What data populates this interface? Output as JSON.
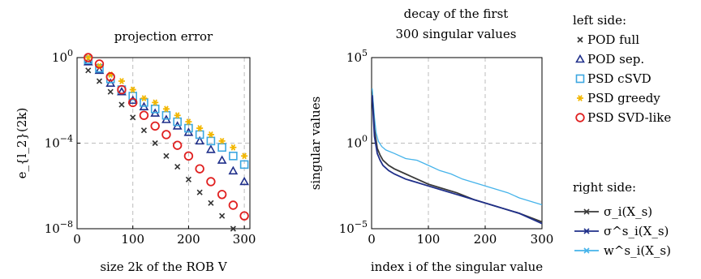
{
  "chart_data": [
    {
      "type": "scatter",
      "title": "projection error",
      "ylabel": "e_{l_2}(2k)",
      "xlabel": "size 2k of the ROB V",
      "xlim": [
        0,
        310
      ],
      "ylim_log10": [
        -8,
        0
      ],
      "yscale": "log",
      "grid": true,
      "x_ticks": [
        0,
        100,
        200,
        300
      ],
      "y_ticks": [
        {
          "label": "10",
          "exp": "0",
          "log10": 0
        },
        {
          "label": "10",
          "exp": "−4",
          "log10": -4
        },
        {
          "label": "10",
          "exp": "−8",
          "log10": -8
        }
      ],
      "x": [
        20,
        40,
        60,
        80,
        100,
        120,
        140,
        160,
        180,
        200,
        220,
        240,
        260,
        280,
        300
      ],
      "series": [
        {
          "name": "POD full",
          "marker": "cross",
          "color": "#333333",
          "log10_values": [
            -0.6,
            -1.1,
            -1.6,
            -2.2,
            -2.8,
            -3.4,
            -4.0,
            -4.6,
            -5.1,
            -5.7,
            -6.3,
            -6.8,
            -7.4,
            -8.0,
            -8.6
          ]
        },
        {
          "name": "POD sep.",
          "marker": "triangle",
          "color": "#1f2f8a",
          "log10_values": [
            -0.2,
            -0.6,
            -1.2,
            -1.6,
            -2.0,
            -2.3,
            -2.6,
            -2.9,
            -3.2,
            -3.5,
            -3.9,
            -4.3,
            -4.8,
            -5.3,
            -5.8
          ]
        },
        {
          "name": "PSD cSVD",
          "marker": "square",
          "color": "#3ca7e0",
          "log10_values": [
            -0.1,
            -0.5,
            -1.0,
            -1.5,
            -1.8,
            -2.1,
            -2.4,
            -2.7,
            -3.0,
            -3.3,
            -3.6,
            -3.9,
            -4.2,
            -4.6,
            -5.0
          ]
        },
        {
          "name": "PSD greedy",
          "marker": "star",
          "color": "#f2b600",
          "log10_values": [
            0.0,
            -0.4,
            -0.8,
            -1.1,
            -1.5,
            -1.9,
            -2.1,
            -2.4,
            -2.7,
            -3.0,
            -3.3,
            -3.6,
            -3.9,
            -4.2,
            -4.6
          ]
        },
        {
          "name": "PSD SVD-like",
          "marker": "circle",
          "color": "#e02020",
          "log10_values": [
            0.0,
            -0.3,
            -0.9,
            -1.5,
            -2.1,
            -2.7,
            -3.2,
            -3.6,
            -4.1,
            -4.6,
            -5.2,
            -5.8,
            -6.4,
            -6.9,
            -7.4
          ]
        }
      ]
    },
    {
      "type": "line",
      "title": [
        "decay of the first",
        "300 singular values"
      ],
      "ylabel": "singular values",
      "xlabel": "index i of the singular value",
      "xlim": [
        0,
        300
      ],
      "ylim_log10": [
        -5,
        5
      ],
      "yscale": "log",
      "grid": true,
      "x_ticks": [
        0,
        100,
        200,
        300
      ],
      "y_ticks": [
        {
          "label": "10",
          "exp": "5",
          "log10": 5
        },
        {
          "label": "10",
          "exp": "0",
          "log10": 0
        },
        {
          "label": "10",
          "exp": "−5",
          "log10": -5
        }
      ],
      "series": [
        {
          "name": "σ_i(X_s)",
          "color": "#3a3a3a",
          "points": [
            [
              1,
              2.8
            ],
            [
              5,
              0.8
            ],
            [
              10,
              -0.3
            ],
            [
              15,
              -0.7
            ],
            [
              20,
              -1.0
            ],
            [
              30,
              -1.3
            ],
            [
              40,
              -1.5
            ],
            [
              60,
              -1.8
            ],
            [
              80,
              -2.1
            ],
            [
              100,
              -2.4
            ],
            [
              120,
              -2.6
            ],
            [
              150,
              -2.9
            ],
            [
              180,
              -3.3
            ],
            [
              200,
              -3.5
            ],
            [
              230,
              -3.8
            ],
            [
              260,
              -4.1
            ],
            [
              300,
              -4.6
            ]
          ]
        },
        {
          "name": "σ^s_i(X_s)",
          "color": "#1f2f8a",
          "points": [
            [
              1,
              2.8
            ],
            [
              5,
              0.4
            ],
            [
              10,
              -0.6
            ],
            [
              15,
              -1.0
            ],
            [
              20,
              -1.3
            ],
            [
              30,
              -1.6
            ],
            [
              40,
              -1.8
            ],
            [
              60,
              -2.1
            ],
            [
              80,
              -2.3
            ],
            [
              100,
              -2.5
            ],
            [
              120,
              -2.7
            ],
            [
              150,
              -3.0
            ],
            [
              180,
              -3.3
            ],
            [
              200,
              -3.5
            ],
            [
              230,
              -3.8
            ],
            [
              260,
              -4.1
            ],
            [
              300,
              -4.7
            ]
          ]
        },
        {
          "name": "w^s_i(X_s)",
          "color": "#45b3ea",
          "points": [
            [
              1,
              3.2
            ],
            [
              5,
              1.5
            ],
            [
              8,
              0.6
            ],
            [
              12,
              0.1
            ],
            [
              18,
              -0.2
            ],
            [
              25,
              -0.4
            ],
            [
              40,
              -0.6
            ],
            [
              60,
              -0.9
            ],
            [
              80,
              -1.0
            ],
            [
              100,
              -1.3
            ],
            [
              120,
              -1.6
            ],
            [
              140,
              -1.8
            ],
            [
              160,
              -2.1
            ],
            [
              180,
              -2.3
            ],
            [
              200,
              -2.5
            ],
            [
              220,
              -2.7
            ],
            [
              240,
              -2.9
            ],
            [
              260,
              -3.2
            ],
            [
              280,
              -3.4
            ],
            [
              300,
              -3.6
            ]
          ]
        }
      ]
    }
  ],
  "legend": {
    "left_title": "left side:",
    "right_title": "right side:"
  }
}
